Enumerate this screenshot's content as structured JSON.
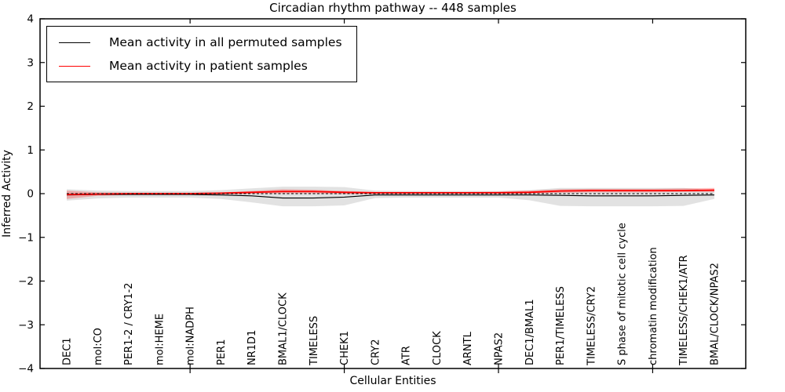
{
  "title": "Circadian rhythm pathway -- 448 samples",
  "legend": {
    "items": [
      {
        "label": "Mean activity in all permuted samples",
        "color": "#000000"
      },
      {
        "label": "Mean activity in patient samples",
        "color": "#ff0000"
      }
    ]
  },
  "chart_data": {
    "type": "line",
    "title": "Circadian rhythm pathway -- 448 samples",
    "xlabel": "Cellular Entities",
    "ylabel": "Inferred Activity",
    "ylim": [
      -4,
      4
    ],
    "yticks": [
      -4,
      -3,
      -2,
      -1,
      0,
      1,
      2,
      3,
      4
    ],
    "grid": false,
    "legend_position": "upper left",
    "xtick_entity_numbers": [
      5,
      10,
      15,
      20
    ],
    "categories": [
      "DEC1",
      "mol:CO",
      "PER1-2 / CRY1-2",
      "mol:HEME",
      "mol:NADPH",
      "PER1",
      "NR1D1",
      "BMAL1/CLOCK",
      "TIMELESS",
      "CHEK1",
      "CRY2",
      "ATR",
      "CLOCK",
      "ARNTL",
      "NPAS2",
      "DEC1/BMAL1",
      "PER1/TIMELESS",
      "TIMELESS/CRY2",
      "S phase of mitotic cell cycle",
      "chromatin modification",
      "TIMELESS/CHEK1/ATR",
      "BMAL/CLOCK/NPAS2"
    ],
    "series": [
      {
        "name": "Mean activity in all permuted samples",
        "color": "#000000",
        "style": "solid",
        "width": 1.1,
        "values": [
          -0.03,
          -0.02,
          -0.02,
          -0.02,
          -0.02,
          -0.03,
          -0.05,
          -0.1,
          -0.1,
          -0.08,
          -0.03,
          -0.03,
          -0.03,
          -0.03,
          -0.03,
          -0.03,
          -0.04,
          -0.05,
          -0.05,
          -0.05,
          -0.04,
          -0.03
        ]
      },
      {
        "name": "Mean activity in patient samples",
        "color": "#ff0000",
        "style": "solid",
        "width": 1.8,
        "values": [
          -0.02,
          -0.01,
          0.0,
          0.0,
          0.0,
          0.01,
          0.03,
          0.05,
          0.05,
          0.03,
          0.02,
          0.02,
          0.02,
          0.02,
          0.02,
          0.03,
          0.06,
          0.07,
          0.07,
          0.07,
          0.07,
          0.08
        ]
      },
      {
        "name": "zero-reference",
        "color": "#000000",
        "style": "dashed",
        "width": 1.1,
        "values": [
          0,
          0,
          0,
          0,
          0,
          0,
          0,
          0,
          0,
          0,
          0,
          0,
          0,
          0,
          0,
          0,
          0,
          0,
          0,
          0,
          0,
          0
        ]
      }
    ],
    "bands": [
      {
        "name": "permuted-samples-range",
        "color": "rgba(125,125,125,0.22)",
        "lo": [
          -0.16,
          -0.11,
          -0.09,
          -0.09,
          -0.09,
          -0.12,
          -0.2,
          -0.29,
          -0.29,
          -0.27,
          -0.1,
          -0.09,
          -0.09,
          -0.09,
          -0.09,
          -0.15,
          -0.28,
          -0.29,
          -0.29,
          -0.29,
          -0.28,
          -0.12
        ],
        "hi": [
          0.1,
          0.07,
          0.06,
          0.06,
          0.06,
          0.08,
          0.12,
          0.16,
          0.16,
          0.15,
          0.07,
          0.06,
          0.06,
          0.06,
          0.06,
          0.08,
          0.13,
          0.13,
          0.13,
          0.13,
          0.13,
          0.08
        ]
      },
      {
        "name": "patient-samples-range",
        "color": "rgba(255,0,0,0.25)",
        "lo": [
          -0.12,
          -0.05,
          -0.03,
          -0.02,
          -0.02,
          -0.02,
          0.0,
          0.01,
          0.01,
          -0.01,
          -0.01,
          -0.01,
          0.0,
          0.0,
          0.0,
          0.0,
          0.02,
          0.03,
          0.03,
          0.03,
          0.04,
          0.04
        ],
        "hi": [
          0.07,
          0.03,
          0.02,
          0.02,
          0.02,
          0.03,
          0.06,
          0.1,
          0.09,
          0.06,
          0.04,
          0.04,
          0.04,
          0.04,
          0.05,
          0.07,
          0.1,
          0.11,
          0.11,
          0.11,
          0.12,
          0.13
        ]
      }
    ]
  }
}
